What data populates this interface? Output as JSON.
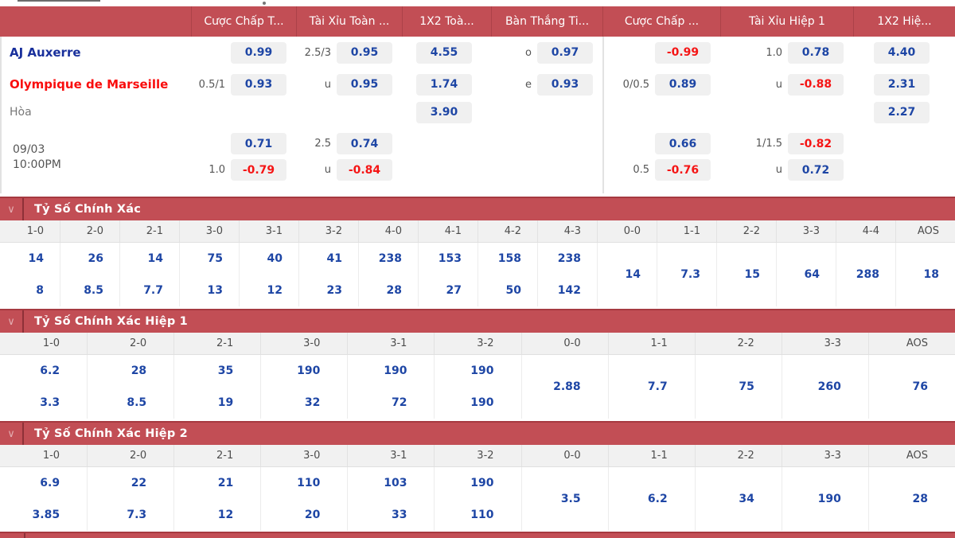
{
  "colors": {
    "header_red": "#c24e55",
    "odds_blue": "#1e46a5",
    "odds_neg_red": "#f51515",
    "home_blue": "#19309c",
    "away_red": "#f90d0d"
  },
  "icons": {
    "chevron_down": "∨"
  },
  "top_table": {
    "headers": [
      "Cược Chấp T...",
      "Tài Xỉu Toàn ...",
      "1X2 Toà...",
      "Bàn Thắng Ti...",
      "Cược Chấp ...",
      "Tài Xỉu Hiệp 1",
      "1X2 Hiệ..."
    ],
    "rows": [
      {
        "label": "AJ Auxerre",
        "type": "home",
        "cells": [
          {
            "odds": "0.99"
          },
          {
            "line": "2.5/3",
            "odds": "0.95"
          },
          {
            "odds": "4.55"
          },
          {
            "line": "o",
            "odds": "0.97"
          },
          {
            "odds": "-0.99"
          },
          {
            "line": "1.0",
            "odds": "0.78"
          },
          {
            "odds": "4.40"
          }
        ]
      },
      {
        "label": "Olympique de Marseille",
        "type": "away",
        "cells": [
          {
            "line": "0.5/1",
            "odds": "0.93"
          },
          {
            "line": "u",
            "odds": "0.95"
          },
          {
            "odds": "1.74"
          },
          {
            "line": "e",
            "odds": "0.93"
          },
          {
            "line": "0/0.5",
            "odds": "0.89"
          },
          {
            "line": "u",
            "odds": "-0.88"
          },
          {
            "odds": "2.31"
          }
        ]
      },
      {
        "label": "Hòa",
        "type": "draw",
        "cells": [
          null,
          null,
          {
            "odds": "3.90"
          },
          null,
          null,
          null,
          {
            "odds": "2.27"
          }
        ]
      }
    ],
    "fixture": {
      "date": "09/03",
      "time": "10:00PM",
      "rows": [
        [
          {
            "odds": "0.71"
          },
          {
            "line": "2.5",
            "odds": "0.74"
          },
          null,
          null,
          {
            "odds": "0.66"
          },
          {
            "line": "1/1.5",
            "odds": "-0.82"
          },
          null
        ],
        [
          {
            "line": "1.0",
            "odds": "-0.79"
          },
          {
            "line": "u",
            "odds": "-0.84"
          },
          null,
          null,
          {
            "line": "0.5",
            "odds": "-0.76"
          },
          {
            "line": "u",
            "odds": "0.72"
          },
          null
        ]
      ]
    }
  },
  "sections": [
    {
      "title": "Tỷ Số Chính Xác",
      "columns": [
        "1-0",
        "2-0",
        "2-1",
        "3-0",
        "3-1",
        "3-2",
        "4-0",
        "4-1",
        "4-2",
        "4-3",
        "0-0",
        "1-1",
        "2-2",
        "3-3",
        "4-4",
        "AOS"
      ],
      "split": {
        "top": [
          "14",
          "26",
          "14",
          "75",
          "40",
          "41",
          "238",
          "153",
          "158",
          "238"
        ],
        "bottom": [
          "8",
          "8.5",
          "7.7",
          "13",
          "12",
          "23",
          "28",
          "27",
          "50",
          "142"
        ]
      },
      "merged": [
        "14",
        "7.3",
        "15",
        "64",
        "288",
        "18"
      ]
    },
    {
      "title": "Tỷ Số Chính Xác Hiệp 1",
      "columns": [
        "1-0",
        "2-0",
        "2-1",
        "3-0",
        "3-1",
        "3-2",
        "0-0",
        "1-1",
        "2-2",
        "3-3",
        "AOS"
      ],
      "split": {
        "top": [
          "6.2",
          "28",
          "35",
          "190",
          "190",
          "190"
        ],
        "bottom": [
          "3.3",
          "8.5",
          "19",
          "32",
          "72",
          "190"
        ]
      },
      "merged": [
        "2.88",
        "7.7",
        "75",
        "260",
        "76"
      ]
    },
    {
      "title": "Tỷ Số Chính Xác Hiệp 2",
      "columns": [
        "1-0",
        "2-0",
        "2-1",
        "3-0",
        "3-1",
        "3-2",
        "0-0",
        "1-1",
        "2-2",
        "3-3",
        "AOS"
      ],
      "split": {
        "top": [
          "6.9",
          "22",
          "21",
          "110",
          "103",
          "190"
        ],
        "bottom": [
          "3.85",
          "7.3",
          "12",
          "20",
          "33",
          "110"
        ]
      },
      "merged": [
        "3.5",
        "6.2",
        "34",
        "190",
        "28"
      ]
    }
  ]
}
